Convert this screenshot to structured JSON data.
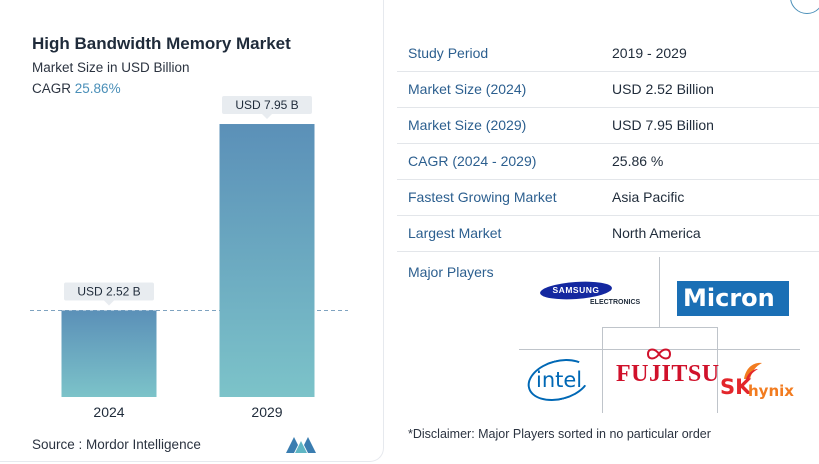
{
  "header": {
    "title": "High Bandwidth Memory Market",
    "subtitle": "Market Size in USD Billion",
    "cagr_label": "CAGR",
    "cagr_value": "25.86%"
  },
  "chart_data": {
    "type": "bar",
    "title": "High Bandwidth Memory Market",
    "ylabel": "Market Size in USD Billion",
    "xlabel": "",
    "categories": [
      "2024",
      "2029"
    ],
    "values": [
      2.52,
      7.95
    ],
    "data_labels": [
      "USD 2.52 B",
      "USD 7.95 B"
    ],
    "ylim": [
      0,
      8.3
    ],
    "reference_line_value": 2.52,
    "colors": {
      "bar_top": "#5b90b8",
      "bar_bottom": "#7cc3c9",
      "label_bg": "#e8ecf0",
      "ref_line": "#7fa3c0"
    }
  },
  "footer": {
    "source": "Source :  Mordor Intelligence"
  },
  "table": {
    "rows": [
      {
        "key": "Study Period",
        "value": "2019 - 2029"
      },
      {
        "key": "Market Size (2024)",
        "value": "USD 2.52 Billion"
      },
      {
        "key": "Market Size (2029)",
        "value": "USD 7.95 Billion"
      },
      {
        "key": "CAGR (2024 - 2029)",
        "value": "25.86 %"
      },
      {
        "key": "Fastest Growing Market",
        "value": "Asia Pacific"
      },
      {
        "key": "Largest Market",
        "value": "North America"
      }
    ]
  },
  "players": {
    "label": "Major Players",
    "logos": {
      "samsung_main": "SAMSUNG",
      "samsung_sub": "ELECTRONICS",
      "micron": "Micron",
      "intel": "intel",
      "fujitsu": "FUJITSU",
      "sk": "SK",
      "hynix": "hynix"
    }
  },
  "disclaimer": "*Disclaimer: Major Players sorted in no particular order",
  "colors": {
    "accent": "#4a8fb8",
    "key_text": "#2c5f8f",
    "samsung": "#1428a0",
    "micron": "#1a6fb5",
    "intel": "#0068b5",
    "fujitsu": "#d0112b",
    "sk_red": "#e3262b",
    "sk_orange": "#f27c20"
  }
}
